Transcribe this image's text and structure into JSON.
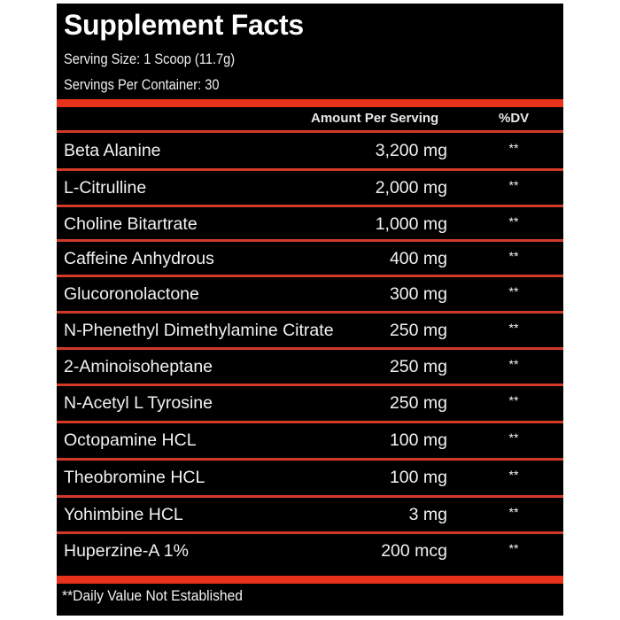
{
  "title": "Supplement Facts",
  "serving_size": "Serving Size: 1 Scoop (11.7g)",
  "servings_per_container": "Servings Per Container: 30",
  "headers": {
    "amount": "Amount Per Serving",
    "dv": "%DV"
  },
  "rows": [
    {
      "name": "Beta Alanine",
      "amount": "3,200 mg",
      "dv": "**"
    },
    {
      "name": "L-Citrulline",
      "amount": "2,000 mg",
      "dv": "**"
    },
    {
      "name": "Choline Bitartrate",
      "amount": "1,000 mg",
      "dv": "**"
    },
    {
      "name": "Caffeine Anhydrous",
      "amount": "400 mg",
      "dv": "**"
    },
    {
      "name": "Glucoronolactone",
      "amount": "300 mg",
      "dv": "**"
    },
    {
      "name": "N-Phenethyl Dimethylamine Citrate",
      "amount": "250 mg",
      "dv": "**"
    },
    {
      "name": "2-Aminoisoheptane",
      "amount": "250 mg",
      "dv": "**"
    },
    {
      "name": "N-Acetyl L Tyrosine",
      "amount": "250 mg",
      "dv": "**"
    },
    {
      "name": "Octopamine HCL",
      "amount": "100 mg",
      "dv": "**"
    },
    {
      "name": "Theobromine HCL",
      "amount": "100 mg",
      "dv": "**"
    },
    {
      "name": "Yohimbine HCL",
      "amount": "3 mg",
      "dv": "**"
    },
    {
      "name": "Huperzine-A 1%",
      "amount": "200 mcg",
      "dv": "**"
    }
  ],
  "footnote": "**Daily Value Not Established",
  "colors": {
    "background": "#000000",
    "accent": "#e8321c",
    "text": "#f2f2f2"
  }
}
